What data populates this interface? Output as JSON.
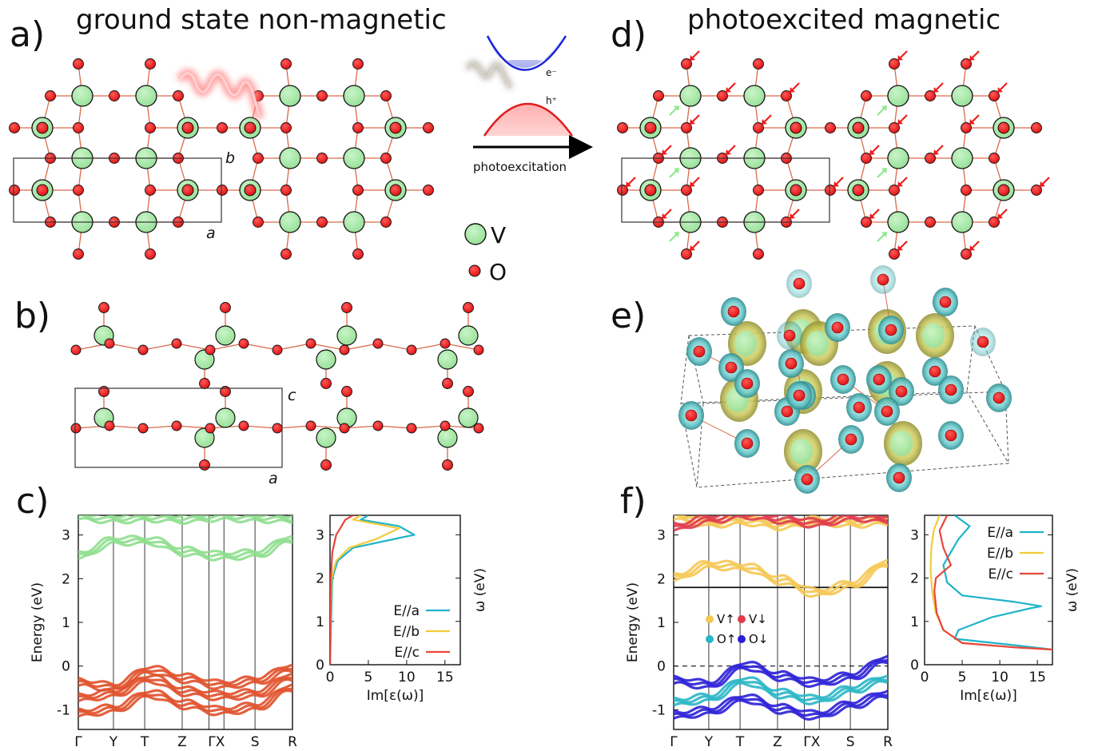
{
  "panels": {
    "a": {
      "letter": "a)",
      "title": "ground state non-magnetic",
      "lattice_a": "a",
      "lattice_b": "b"
    },
    "b": {
      "letter": "b)",
      "lattice_a": "a",
      "lattice_c": "c"
    },
    "c": {
      "letter": "c)"
    },
    "d": {
      "letter": "d)",
      "title": "photoexcited magnetic"
    },
    "e": {
      "letter": "e)"
    },
    "f": {
      "letter": "f)"
    }
  },
  "scheme": {
    "electron": "e⁻",
    "hole": "h⁺",
    "arrow_label": "photoexcitation"
  },
  "legend_atoms": [
    {
      "symbol": "V",
      "color": "#9de39d"
    },
    {
      "symbol": "O",
      "color": "#ee1111"
    }
  ],
  "chart_data": [
    {
      "type": "line",
      "panel": "c-bands",
      "ylabel": "Energy (eV)",
      "ylim": [
        -1.45,
        3.45
      ],
      "xticks": [
        "Γ",
        "Y",
        "T",
        "Z",
        "ΓX",
        "S",
        "R"
      ],
      "yticks": [
        -1,
        0,
        1,
        2,
        3
      ],
      "series": [
        {
          "values": [
            3.35,
            3.3,
            3.33,
            3.3,
            3.35,
            3.32,
            3.3
          ]
        },
        {
          "values": [
            2.45,
            2.8,
            2.8,
            2.55,
            2.45,
            2.5,
            2.85
          ]
        },
        {
          "values": [
            -0.45,
            -0.55,
            -0.15,
            -0.35,
            -0.5,
            -0.4,
            -0.1
          ]
        },
        {
          "values": [
            -0.8,
            -0.7,
            -0.35,
            -0.65,
            -0.75,
            -0.7,
            -0.3
          ]
        },
        {
          "values": [
            -1.15,
            -1.05,
            -0.7,
            -0.95,
            -1.1,
            -1.0,
            -0.55
          ]
        }
      ],
      "colors": {
        "conduction": "#8ede8e",
        "valence": "#e0502a"
      }
    },
    {
      "type": "line",
      "panel": "c-optics",
      "xlabel": "Im[ε(ω)]",
      "ylabel": "ω (eV)",
      "xlim": [
        0,
        17
      ],
      "ylim": [
        0,
        3.45
      ],
      "xticks": [
        0,
        5,
        10,
        15
      ],
      "yticks": [
        0,
        1,
        2,
        3
      ],
      "series": [
        {
          "name": "E//a",
          "color": "#1fb3c9",
          "x": [
            0,
            0.3,
            1,
            3,
            7,
            11,
            9,
            4,
            5
          ],
          "y": [
            0,
            2.0,
            2.4,
            2.7,
            2.85,
            3.0,
            3.2,
            3.35,
            3.45
          ]
        },
        {
          "name": "E//b",
          "color": "#f2cc3a",
          "x": [
            0,
            0.2,
            0.8,
            2.5,
            6,
            9,
            6,
            3,
            4
          ],
          "y": [
            0,
            2.0,
            2.4,
            2.7,
            2.9,
            3.15,
            3.25,
            3.35,
            3.45
          ]
        },
        {
          "name": "E//c",
          "color": "#e8453c",
          "x": [
            0,
            0.1,
            0.3,
            0.8,
            1.5,
            2.0,
            3.0
          ],
          "y": [
            0,
            2.0,
            2.6,
            3.0,
            3.2,
            3.35,
            3.45
          ]
        }
      ]
    },
    {
      "type": "line",
      "panel": "f-bands",
      "ylabel": "Energy (eV)",
      "ylim": [
        -1.45,
        3.45
      ],
      "xticks": [
        "Γ",
        "Y",
        "T",
        "Z",
        "ΓX",
        "S",
        "R"
      ],
      "yticks": [
        -1,
        0,
        1,
        2,
        3
      ],
      "legend": [
        "V↑",
        "V↓",
        "O↑",
        "O↓"
      ],
      "legend_colors": [
        "#f5c853",
        "#e03a4a",
        "#29b6c6",
        "#2a1fd6"
      ],
      "series": [
        {
          "values": [
            3.35,
            3.2,
            3.25,
            3.15,
            3.25,
            3.2,
            3.25
          ]
        },
        {
          "values": [
            3.1,
            3.3,
            3.4,
            3.3,
            3.2,
            3.35,
            3.3
          ]
        },
        {
          "values": [
            1.95,
            2.25,
            2.2,
            1.9,
            1.6,
            1.8,
            2.3
          ]
        },
        {
          "values": [
            -0.4,
            -0.5,
            -0.05,
            -0.3,
            -0.45,
            -0.3,
            0.1
          ]
        },
        {
          "values": [
            -0.9,
            -0.8,
            -0.4,
            -0.7,
            -0.85,
            -0.6,
            -0.35
          ]
        },
        {
          "values": [
            -1.2,
            -1.1,
            -0.8,
            -1.05,
            -1.2,
            -0.95,
            -0.7
          ]
        }
      ],
      "fermi_level": 0,
      "midgap_line": 1.8
    },
    {
      "type": "line",
      "panel": "f-optics",
      "xlabel": "Im[ε(ω)]",
      "ylabel": "ω (eV)",
      "xlim": [
        0,
        17
      ],
      "ylim": [
        0,
        3.45
      ],
      "xticks": [
        0,
        5,
        10,
        15
      ],
      "yticks": [
        0,
        1,
        2,
        3
      ],
      "series": [
        {
          "name": "E//a",
          "color": "#1fb3c9",
          "x": [
            17,
            12,
            4,
            4.5,
            9,
            14,
            15.5,
            12,
            5,
            3,
            2.5,
            3.5,
            4.5,
            6,
            4
          ],
          "y": [
            0.35,
            0.45,
            0.6,
            0.8,
            1.1,
            1.3,
            1.35,
            1.45,
            1.6,
            1.9,
            2.3,
            2.6,
            2.9,
            3.2,
            3.45
          ]
        },
        {
          "name": "E//b",
          "color": "#f2cc3a",
          "x": [
            17,
            12,
            5,
            2.5,
            1.5,
            1.0,
            0.8,
            0.9,
            1.2,
            2.0
          ],
          "y": [
            0.35,
            0.4,
            0.5,
            0.8,
            1.2,
            1.7,
            2.2,
            2.7,
            3.1,
            3.45
          ]
        },
        {
          "name": "E//c",
          "color": "#e8453c",
          "x": [
            17,
            12,
            5,
            2.5,
            1.6,
            1.3,
            1.5,
            3.5,
            2.5,
            2.0,
            3.0
          ],
          "y": [
            0.35,
            0.4,
            0.5,
            0.8,
            1.2,
            1.7,
            2.0,
            2.3,
            2.7,
            3.1,
            3.45
          ]
        }
      ]
    }
  ]
}
